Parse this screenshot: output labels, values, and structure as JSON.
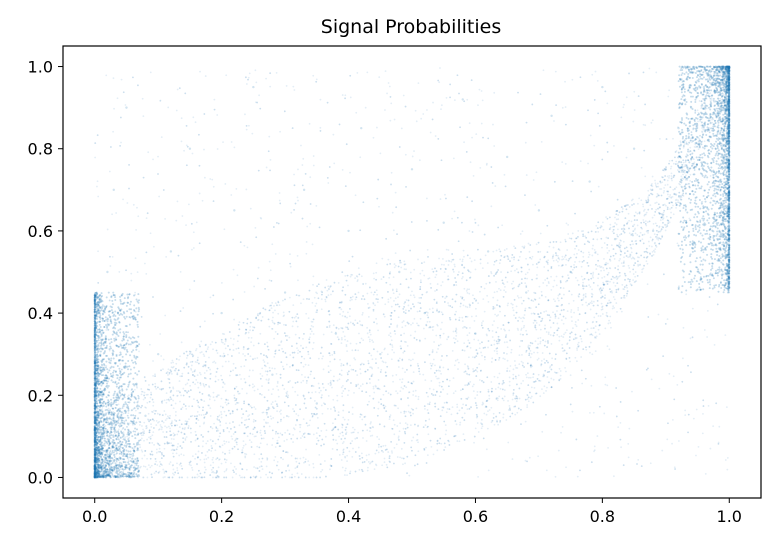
{
  "chart_data": {
    "type": "scatter",
    "title": "Signal Probabilities",
    "xlabel": "",
    "ylabel": "",
    "xlim": [
      -0.05,
      1.05
    ],
    "ylim": [
      -0.05,
      1.05
    ],
    "x_ticks": [
      0.0,
      0.2,
      0.4,
      0.6,
      0.8,
      1.0
    ],
    "x_tick_labels": [
      "0.0",
      "0.2",
      "0.4",
      "0.6",
      "0.8",
      "1.0"
    ],
    "y_ticks": [
      0.0,
      0.2,
      0.4,
      0.6,
      0.8,
      1.0
    ],
    "y_tick_labels": [
      "0.0",
      "0.2",
      "0.4",
      "0.6",
      "0.8",
      "1.0"
    ],
    "grid": false,
    "legend": "none",
    "marker_color": "#1f77b4",
    "marker_alpha": 0.2,
    "series": [
      {
        "points_note_free": true,
        "x": [
          0.0,
          0.0,
          0.01,
          0.01,
          0.02,
          0.03,
          0.05,
          0.08,
          0.1,
          0.12,
          0.15,
          0.18,
          0.2,
          0.22,
          0.25,
          0.28,
          0.3,
          0.33,
          0.35,
          0.38,
          0.4,
          0.42,
          0.45,
          0.48,
          0.5,
          0.52,
          0.55,
          0.58,
          0.6,
          0.62,
          0.65,
          0.68,
          0.7,
          0.72,
          0.75,
          0.78,
          0.8,
          0.82,
          0.85,
          0.88,
          0.9,
          0.92,
          0.94,
          0.96,
          0.97,
          0.98,
          0.99,
          1.0,
          1.0,
          1.0
        ],
        "y": [
          0.0,
          0.1,
          0.2,
          0.35,
          0.5,
          0.7,
          0.9,
          0.15,
          0.3,
          0.55,
          0.8,
          0.2,
          0.4,
          0.65,
          0.95,
          0.25,
          0.45,
          0.7,
          0.18,
          0.35,
          0.6,
          0.85,
          0.3,
          0.5,
          0.75,
          0.4,
          0.62,
          0.92,
          0.35,
          0.55,
          0.78,
          0.45,
          0.65,
          0.88,
          0.5,
          0.72,
          0.95,
          0.58,
          0.8,
          0.6,
          0.75,
          0.85,
          0.9,
          0.95,
          0.98,
          0.99,
          1.0,
          0.85,
          0.95,
          1.0
        ]
      }
    ]
  }
}
